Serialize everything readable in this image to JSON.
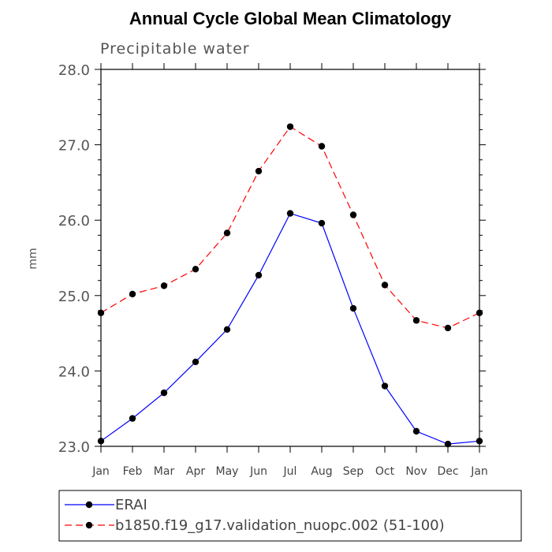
{
  "chart_data": {
    "type": "line",
    "title": "Annual Cycle Global Mean Climatology",
    "subtitle": "Precipitable water",
    "xlabel": "",
    "ylabel": "mm",
    "categories": [
      "Jan",
      "Feb",
      "Mar",
      "Apr",
      "May",
      "Jun",
      "Jul",
      "Aug",
      "Sep",
      "Oct",
      "Nov",
      "Dec",
      "Jan"
    ],
    "ylim": [
      23.0,
      28.0
    ],
    "yticks": [
      "23.0",
      "24.0",
      "25.0",
      "26.0",
      "27.0",
      "28.0"
    ],
    "grid": false,
    "legend_position": "bottom",
    "series": [
      {
        "name": "ERAI",
        "color": "#0000ff",
        "dash": "solid",
        "values": [
          23.07,
          23.37,
          23.71,
          24.12,
          24.55,
          25.27,
          26.09,
          25.96,
          24.83,
          23.8,
          23.2,
          23.03,
          23.07
        ]
      },
      {
        "name": "b1850.f19_g17.validation_nuopc.002 (51-100)",
        "color": "#ff0000",
        "dash": "dashed",
        "values": [
          24.77,
          25.02,
          25.13,
          25.35,
          25.83,
          26.65,
          27.24,
          26.98,
          26.07,
          25.14,
          24.67,
          24.57,
          24.77
        ]
      }
    ]
  }
}
